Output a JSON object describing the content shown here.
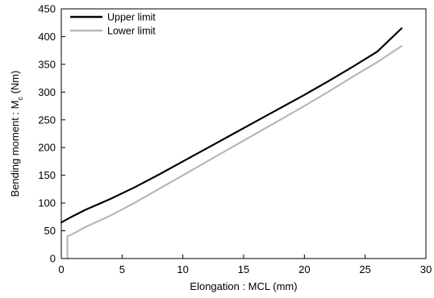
{
  "chart_data": {
    "type": "line",
    "xlabel": "Elongation : MCL (mm)",
    "ylabel": "Bending moment : M",
    "ylabel_sub": "c",
    "ylabel_unit": " (Nm)",
    "xlim": [
      0,
      30
    ],
    "ylim": [
      0,
      450
    ],
    "xticks": [
      "0",
      "5",
      "10",
      "15",
      "20",
      "25",
      "30"
    ],
    "yticks": [
      "0",
      "50",
      "100",
      "150",
      "200",
      "250",
      "300",
      "350",
      "400",
      "450"
    ],
    "grid": false,
    "legend_position": "top-left",
    "series": [
      {
        "name": "Upper limit",
        "color": "#000000",
        "x": [
          0,
          1,
          2,
          4,
          6,
          8,
          10,
          12,
          14,
          16,
          18,
          20,
          22,
          24,
          26,
          28
        ],
        "y": [
          65,
          77,
          88,
          107,
          128,
          151,
          175,
          199,
          223,
          247,
          271,
          295,
          320,
          346,
          373,
          415
        ]
      },
      {
        "name": "Lower limit",
        "color": "#b8b8b8",
        "x": [
          0.5,
          0.5,
          1,
          2,
          4,
          6,
          8,
          10,
          12,
          14,
          16,
          18,
          20,
          22,
          24,
          26,
          28
        ],
        "y": [
          0,
          40,
          45,
          57,
          77,
          100,
          125,
          150,
          175,
          200,
          225,
          250,
          275,
          301,
          328,
          354,
          383
        ]
      }
    ]
  }
}
